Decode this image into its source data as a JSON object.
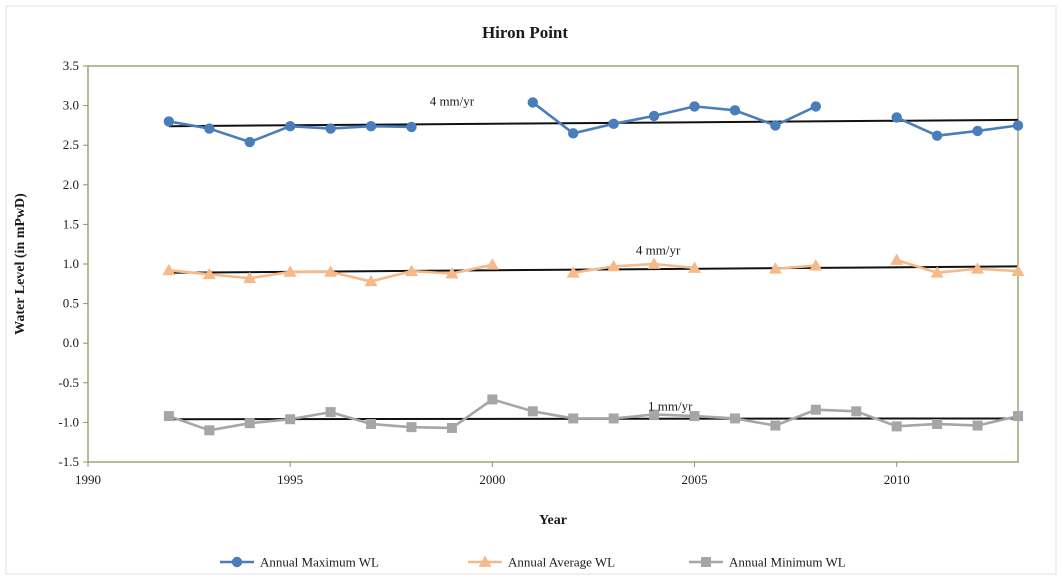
{
  "chart_data": {
    "type": "line",
    "title": "Hiron Point",
    "xlabel": "Year",
    "ylabel": "Water Level (in mPwD)",
    "xlim": [
      1990,
      2013
    ],
    "ylim": [
      -1.5,
      3.5
    ],
    "xticks": [
      "1990",
      "1995",
      "2000",
      "2005",
      "2010"
    ],
    "yticks": [
      "3.5",
      "3.0",
      "2.5",
      "2.0",
      "1.5",
      "1.0",
      "0.5",
      "0.0",
      "-0.5",
      "-1.0",
      "-1.5"
    ],
    "legend_position": "bottom",
    "grid": false,
    "series": [
      {
        "name": "Annual Maximum WL",
        "color": "#4a7ebb",
        "marker": "circle",
        "points": [
          [
            1992,
            2.8
          ],
          [
            1993,
            2.71
          ],
          [
            1994,
            2.54
          ],
          [
            1995,
            2.74
          ],
          [
            1996,
            2.71
          ],
          [
            1997,
            2.74
          ],
          [
            1998,
            2.73
          ],
          [
            2001,
            3.04
          ],
          [
            2002,
            2.65
          ],
          [
            2003,
            2.77
          ],
          [
            2004,
            2.87
          ],
          [
            2005,
            2.99
          ],
          [
            2006,
            2.94
          ],
          [
            2007,
            2.75
          ],
          [
            2008,
            2.99
          ],
          [
            2010,
            2.85
          ],
          [
            2011,
            2.62
          ],
          [
            2012,
            2.68
          ],
          [
            2013,
            2.75
          ]
        ],
        "segments": [
          [
            0,
            6
          ],
          [
            7,
            14
          ],
          [
            15,
            18
          ]
        ]
      },
      {
        "name": "Annual Average WL",
        "color": "#f5b98a",
        "marker": "triangle",
        "points": [
          [
            1992,
            0.92
          ],
          [
            1993,
            0.87
          ],
          [
            1994,
            0.82
          ],
          [
            1995,
            0.9
          ],
          [
            1996,
            0.9
          ],
          [
            1997,
            0.78
          ],
          [
            1998,
            0.91
          ],
          [
            1999,
            0.88
          ],
          [
            2000,
            0.99
          ],
          [
            2002,
            0.89
          ],
          [
            2003,
            0.97
          ],
          [
            2004,
            1.0
          ],
          [
            2005,
            0.95
          ],
          [
            2007,
            0.94
          ],
          [
            2008,
            0.98
          ],
          [
            2010,
            1.05
          ],
          [
            2011,
            0.89
          ],
          [
            2012,
            0.94
          ],
          [
            2013,
            0.91
          ]
        ],
        "segments": [
          [
            0,
            8
          ],
          [
            9,
            12
          ],
          [
            13,
            14
          ],
          [
            15,
            18
          ]
        ]
      },
      {
        "name": "Annual Minimum WL",
        "color": "#a6a6a6",
        "marker": "square",
        "points": [
          [
            1992,
            -0.92
          ],
          [
            1993,
            -1.1
          ],
          [
            1994,
            -1.01
          ],
          [
            1995,
            -0.96
          ],
          [
            1996,
            -0.87
          ],
          [
            1997,
            -1.02
          ],
          [
            1998,
            -1.06
          ],
          [
            1999,
            -1.07
          ],
          [
            2000,
            -0.71
          ],
          [
            2001,
            -0.86
          ],
          [
            2002,
            -0.95
          ],
          [
            2003,
            -0.95
          ],
          [
            2004,
            -0.9
          ],
          [
            2005,
            -0.92
          ],
          [
            2006,
            -0.95
          ],
          [
            2007,
            -1.04
          ],
          [
            2008,
            -0.84
          ],
          [
            2009,
            -0.86
          ],
          [
            2010,
            -1.05
          ],
          [
            2011,
            -1.02
          ],
          [
            2012,
            -1.04
          ],
          [
            2013,
            -0.92
          ]
        ],
        "segments": [
          [
            0,
            21
          ]
        ]
      }
    ],
    "trendlines": [
      {
        "label": "4 mm/yr",
        "start": [
          1992,
          2.74
        ],
        "end": [
          2013,
          2.82
        ],
        "label_at": [
          1999,
          3.0
        ]
      },
      {
        "label": "4 mm/yr",
        "start": [
          1992,
          0.89
        ],
        "end": [
          2013,
          0.97
        ],
        "label_at": [
          2004.1,
          1.12
        ]
      },
      {
        "label": "1 mm/yr",
        "start": [
          1992,
          -0.96
        ],
        "end": [
          2013,
          -0.95
        ],
        "label_at": [
          2004.4,
          -0.85
        ]
      }
    ]
  }
}
